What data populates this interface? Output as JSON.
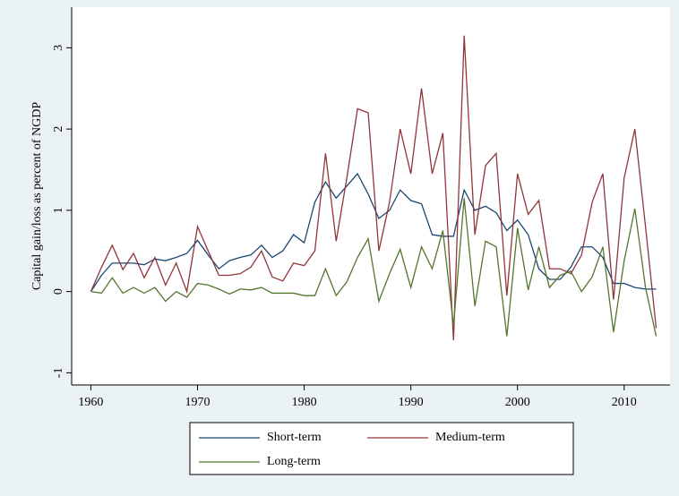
{
  "chart_data": {
    "type": "line",
    "y_label": "Capital gain/loss as percent of NGDP",
    "x": [
      1960,
      1961,
      1962,
      1963,
      1964,
      1965,
      1966,
      1967,
      1968,
      1969,
      1970,
      1971,
      1972,
      1973,
      1974,
      1975,
      1976,
      1977,
      1978,
      1979,
      1980,
      1981,
      1982,
      1983,
      1984,
      1985,
      1986,
      1987,
      1988,
      1989,
      1990,
      1991,
      1992,
      1993,
      1994,
      1995,
      1996,
      1997,
      1998,
      1999,
      2000,
      2001,
      2002,
      2003,
      2004,
      2005,
      2006,
      2007,
      2008,
      2009,
      2010,
      2011,
      2012,
      2013
    ],
    "series": [
      {
        "name": "Short-term",
        "color": "#1a476f",
        "values": [
          0.0,
          0.2,
          0.35,
          0.35,
          0.35,
          0.33,
          0.4,
          0.38,
          0.42,
          0.47,
          0.63,
          0.45,
          0.28,
          0.38,
          0.42,
          0.45,
          0.57,
          0.42,
          0.5,
          0.7,
          0.6,
          1.1,
          1.35,
          1.15,
          1.3,
          1.45,
          1.2,
          0.9,
          1.0,
          1.25,
          1.12,
          1.08,
          0.7,
          0.68,
          0.68,
          1.25,
          1.0,
          1.05,
          0.97,
          0.75,
          0.88,
          0.7,
          0.28,
          0.15,
          0.15,
          0.3,
          0.55,
          0.55,
          0.42,
          0.1,
          0.1,
          0.05,
          0.03,
          0.03
        ]
      },
      {
        "name": "Medium-term",
        "color": "#90353b",
        "values": [
          0.0,
          0.3,
          0.57,
          0.27,
          0.47,
          0.17,
          0.42,
          0.08,
          0.35,
          0.0,
          0.8,
          0.5,
          0.2,
          0.2,
          0.22,
          0.3,
          0.5,
          0.18,
          0.13,
          0.35,
          0.32,
          0.5,
          1.7,
          0.62,
          1.4,
          2.25,
          2.2,
          0.5,
          1.1,
          2.0,
          1.45,
          2.5,
          1.45,
          1.95,
          -0.6,
          3.15,
          0.7,
          1.55,
          1.7,
          -0.05,
          1.45,
          0.95,
          1.12,
          0.28,
          0.28,
          0.22,
          0.45,
          1.1,
          1.45,
          -0.1,
          1.4,
          2.0,
          0.8,
          -0.45
        ]
      },
      {
        "name": "Long-term",
        "color": "#55752f",
        "values": [
          0.0,
          -0.02,
          0.17,
          -0.02,
          0.05,
          -0.02,
          0.05,
          -0.12,
          0.0,
          -0.07,
          0.1,
          0.08,
          0.03,
          -0.03,
          0.03,
          0.02,
          0.05,
          -0.02,
          -0.02,
          -0.02,
          -0.05,
          -0.05,
          0.28,
          -0.05,
          0.12,
          0.42,
          0.65,
          -0.12,
          0.22,
          0.52,
          0.05,
          0.55,
          0.28,
          0.75,
          -0.42,
          1.15,
          -0.18,
          0.62,
          0.55,
          -0.55,
          0.78,
          0.02,
          0.55,
          0.05,
          0.2,
          0.25,
          0.0,
          0.18,
          0.55,
          -0.5,
          0.38,
          1.02,
          0.05,
          -0.55
        ]
      }
    ],
    "xlim": [
      1958.2,
      2014.3
    ],
    "xticks": [
      1960,
      1970,
      1980,
      1990,
      2000,
      2010
    ],
    "ylim": [
      -1.15,
      3.5
    ],
    "yticks": [
      -1,
      0,
      1,
      2,
      3
    ]
  }
}
